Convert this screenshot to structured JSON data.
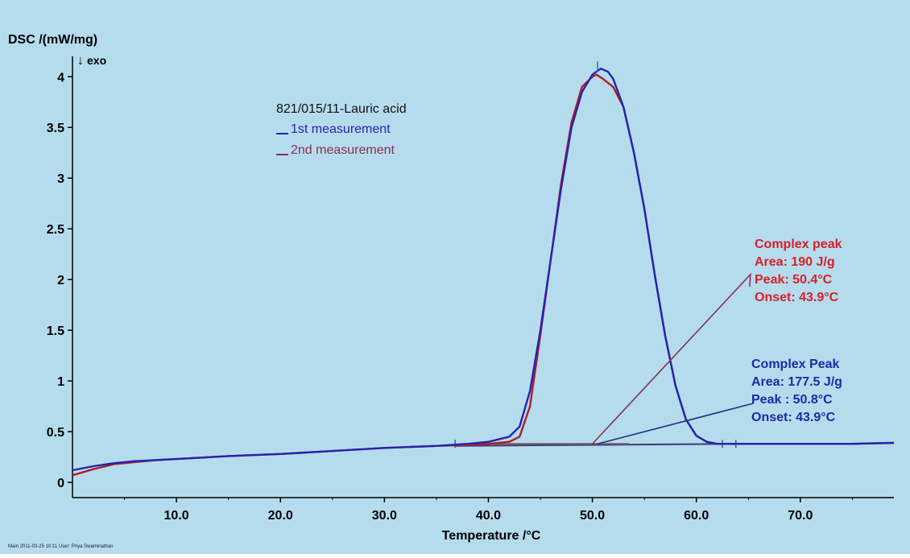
{
  "chart_data": {
    "type": "line",
    "ylabel": "DSC /(mW/mg)",
    "exo_label": "exo",
    "exo_arrow": "↓",
    "xlabel": "Temperature /°C",
    "xlim": [
      0,
      79
    ],
    "ylim": [
      -0.15,
      4.28
    ],
    "x_ticks": [
      10,
      20,
      30,
      40,
      50,
      60,
      70
    ],
    "x_tick_labels": [
      "10.0",
      "20.0",
      "30.0",
      "40.0",
      "50.0",
      "60.0",
      "70.0"
    ],
    "y_ticks": [
      0,
      0.5,
      1,
      1.5,
      2,
      2.5,
      3,
      3.5,
      4
    ],
    "y_tick_labels": [
      "0",
      "0.5",
      "1",
      "1.5",
      "2",
      "2.5",
      "3",
      "3.5",
      "4"
    ],
    "grid": false,
    "legend_title": "821/015/11-Lauric acid",
    "legend_position": "top-left",
    "series": [
      {
        "name": "1st measurement",
        "color": "#2424b0",
        "x": [
          0,
          2,
          4,
          6,
          8,
          10,
          15,
          20,
          25,
          30,
          35,
          38,
          40,
          42,
          43,
          44,
          45,
          46,
          47,
          48,
          49,
          50,
          50.8,
          51.5,
          52,
          53,
          54,
          55,
          56,
          57,
          58,
          59,
          60,
          61,
          62,
          63,
          65,
          70,
          75,
          79
        ],
        "values": [
          0.12,
          0.16,
          0.19,
          0.21,
          0.22,
          0.23,
          0.26,
          0.28,
          0.31,
          0.34,
          0.36,
          0.38,
          0.4,
          0.45,
          0.55,
          0.9,
          1.5,
          2.2,
          2.9,
          3.5,
          3.85,
          4.02,
          4.08,
          4.05,
          3.98,
          3.7,
          3.25,
          2.7,
          2.05,
          1.45,
          0.95,
          0.62,
          0.46,
          0.4,
          0.38,
          0.38,
          0.38,
          0.38,
          0.38,
          0.39
        ]
      },
      {
        "name": "2nd measurement",
        "color": "#b01e24",
        "x": [
          0,
          2,
          4,
          6,
          8,
          10,
          15,
          20,
          25,
          30,
          35,
          38,
          40,
          42,
          43,
          44,
          45,
          46,
          47,
          48,
          49,
          50,
          50.4,
          51,
          52,
          53,
          54,
          55,
          56,
          57,
          58,
          59,
          60,
          61,
          62,
          63,
          65,
          70,
          75,
          79
        ],
        "values": [
          0.07,
          0.13,
          0.18,
          0.2,
          0.22,
          0.23,
          0.26,
          0.28,
          0.31,
          0.34,
          0.36,
          0.37,
          0.38,
          0.4,
          0.45,
          0.75,
          1.45,
          2.2,
          2.95,
          3.55,
          3.9,
          4.0,
          4.02,
          3.98,
          3.9,
          3.7,
          3.25,
          2.7,
          2.05,
          1.45,
          0.95,
          0.62,
          0.46,
          0.4,
          0.38,
          0.38,
          0.38,
          0.38,
          0.38,
          0.39
        ]
      }
    ],
    "annotations": [
      {
        "lines": [
          "Complex peak",
          "Area: 190 J/g",
          "Peak: 50.4°C",
          "Onset: 43.9°C"
        ],
        "color": "#d8202a",
        "line_color": "#8a3050"
      },
      {
        "lines": [
          "Complex Peak",
          "Area: 177.5 J/g",
          "Peak : 50.8°C",
          "Onset: 43.9°C"
        ],
        "color": "#1c2aa8",
        "line_color": "#203080"
      }
    ],
    "footer": "Main   2011-03-25 10:11   User: Priya Swaminathan"
  },
  "colors": {
    "background": "#b5dced",
    "axis": "#000000",
    "baseline": "#4a4a6a"
  }
}
